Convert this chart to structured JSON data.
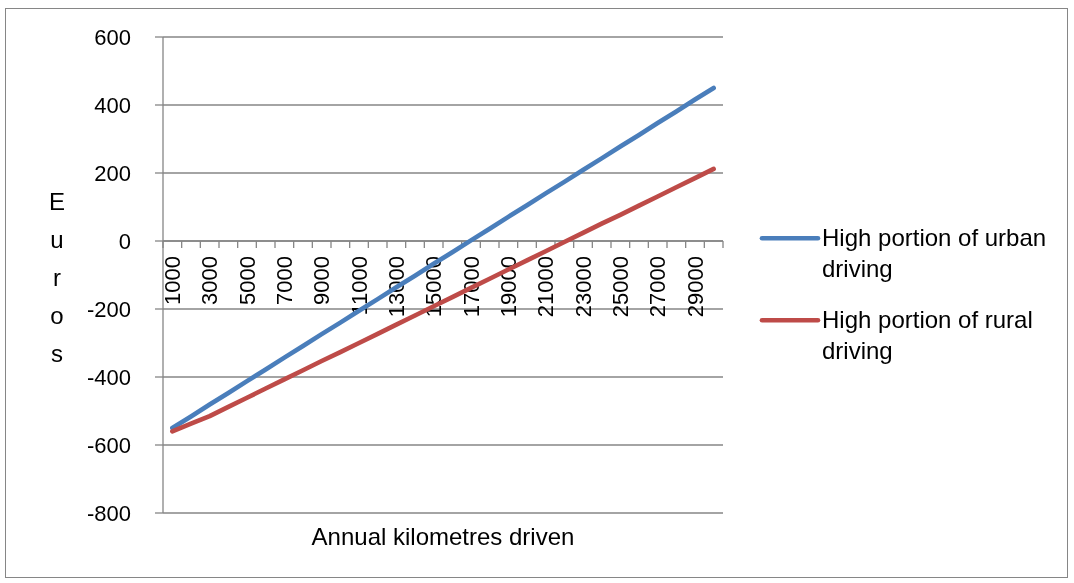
{
  "chart_data": {
    "type": "line",
    "xlabel": "Annual kilometres driven",
    "ylabel": "Euros",
    "categories": [
      "1000",
      null,
      "3000",
      null,
      "5000",
      null,
      "7000",
      null,
      "9000",
      null,
      "11000",
      null,
      "13000",
      null,
      "15000",
      null,
      "17000",
      null,
      "19000",
      null,
      "21000",
      null,
      "23000",
      null,
      "25000",
      null,
      "27000",
      null,
      "29000",
      null
    ],
    "series": [
      {
        "name": "High portion of urban driving",
        "color": "#4a7ebb",
        "values": [
          -550,
          -516,
          -481,
          -447,
          -412,
          -378,
          -343,
          -309,
          -274,
          -240,
          -205,
          -171,
          -136,
          -102,
          -67,
          -33,
          2,
          36,
          71,
          105,
          140,
          174,
          209,
          243,
          278,
          312,
          347,
          381,
          416,
          450
        ]
      },
      {
        "name": "High portion of rural driving",
        "color": "#be4b48",
        "values": [
          -560,
          -537,
          -515,
          -488,
          -461,
          -434,
          -407,
          -380,
          -353,
          -327,
          -300,
          -273,
          -246,
          -219,
          -192,
          -165,
          -138,
          -111,
          -84,
          -57,
          -30,
          -3,
          24,
          51,
          77,
          104,
          131,
          158,
          185,
          212
        ]
      }
    ],
    "ylim": [
      -800,
      600
    ],
    "yticks": [
      -800,
      -600,
      -400,
      -200,
      0,
      200,
      400,
      600
    ],
    "grid": "y",
    "legend": "right"
  }
}
